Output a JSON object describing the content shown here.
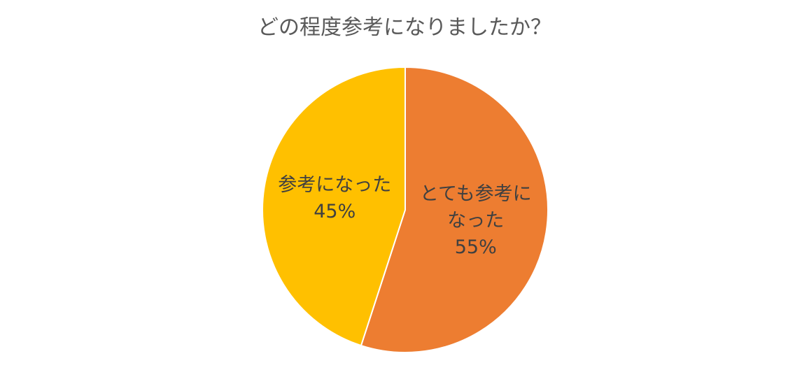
{
  "chart_data": {
    "type": "pie",
    "title": "どの程度参考になりましたか？",
    "categories": [
      "とても参考になった",
      "参考になった"
    ],
    "values": [
      55,
      45
    ],
    "value_labels": [
      "55%",
      "45%"
    ],
    "colors": [
      "#ED7D31",
      "#FFC000"
    ]
  }
}
